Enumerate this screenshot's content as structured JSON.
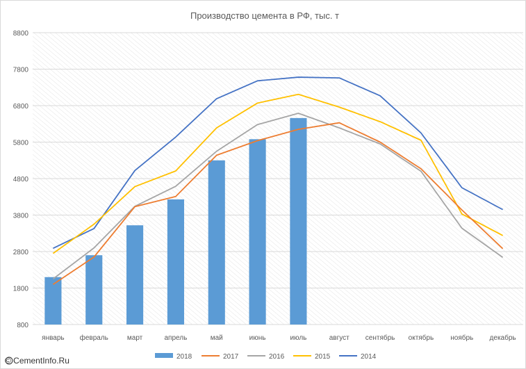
{
  "chart_data": {
    "type": "bar+line",
    "title": "Производство цемента в РФ, тыс. т",
    "categories": [
      "январь",
      "февраль",
      "март",
      "апрель",
      "май",
      "июнь",
      "июль",
      "август",
      "сентябрь",
      "октябрь",
      "ноябрь",
      "декабрь"
    ],
    "ylim": [
      800,
      8800
    ],
    "yticks": [
      "800",
      "1800",
      "2800",
      "3800",
      "4800",
      "5800",
      "6800",
      "7800",
      "8800"
    ],
    "grid": "horizontal",
    "legend_position": "bottom",
    "series": [
      {
        "name": "2018",
        "kind": "bar",
        "color": "#5b9bd5",
        "values": [
          2100,
          2700,
          3520,
          4230,
          5300,
          5880,
          6460,
          null,
          null,
          null,
          null,
          null
        ]
      },
      {
        "name": "2017",
        "kind": "line",
        "color": "#ed7d31",
        "values": [
          1900,
          2650,
          4030,
          4310,
          5440,
          5840,
          6150,
          6330,
          5800,
          5070,
          3940,
          2880
        ]
      },
      {
        "name": "2016",
        "kind": "line",
        "color": "#a5a5a5",
        "values": [
          2050,
          2900,
          4040,
          4590,
          5550,
          6280,
          6590,
          6190,
          5750,
          5000,
          3440,
          2640
        ]
      },
      {
        "name": "2015",
        "kind": "line",
        "color": "#ffc000",
        "values": [
          2750,
          3550,
          4580,
          5010,
          6190,
          6870,
          7110,
          6760,
          6360,
          5850,
          3830,
          3240
        ]
      },
      {
        "name": "2014",
        "kind": "line",
        "color": "#4472c4",
        "values": [
          2890,
          3430,
          5020,
          5940,
          6990,
          7480,
          7580,
          7560,
          7070,
          6050,
          4550,
          3950
        ]
      }
    ]
  },
  "watermark": "© CementInfo.Ru"
}
